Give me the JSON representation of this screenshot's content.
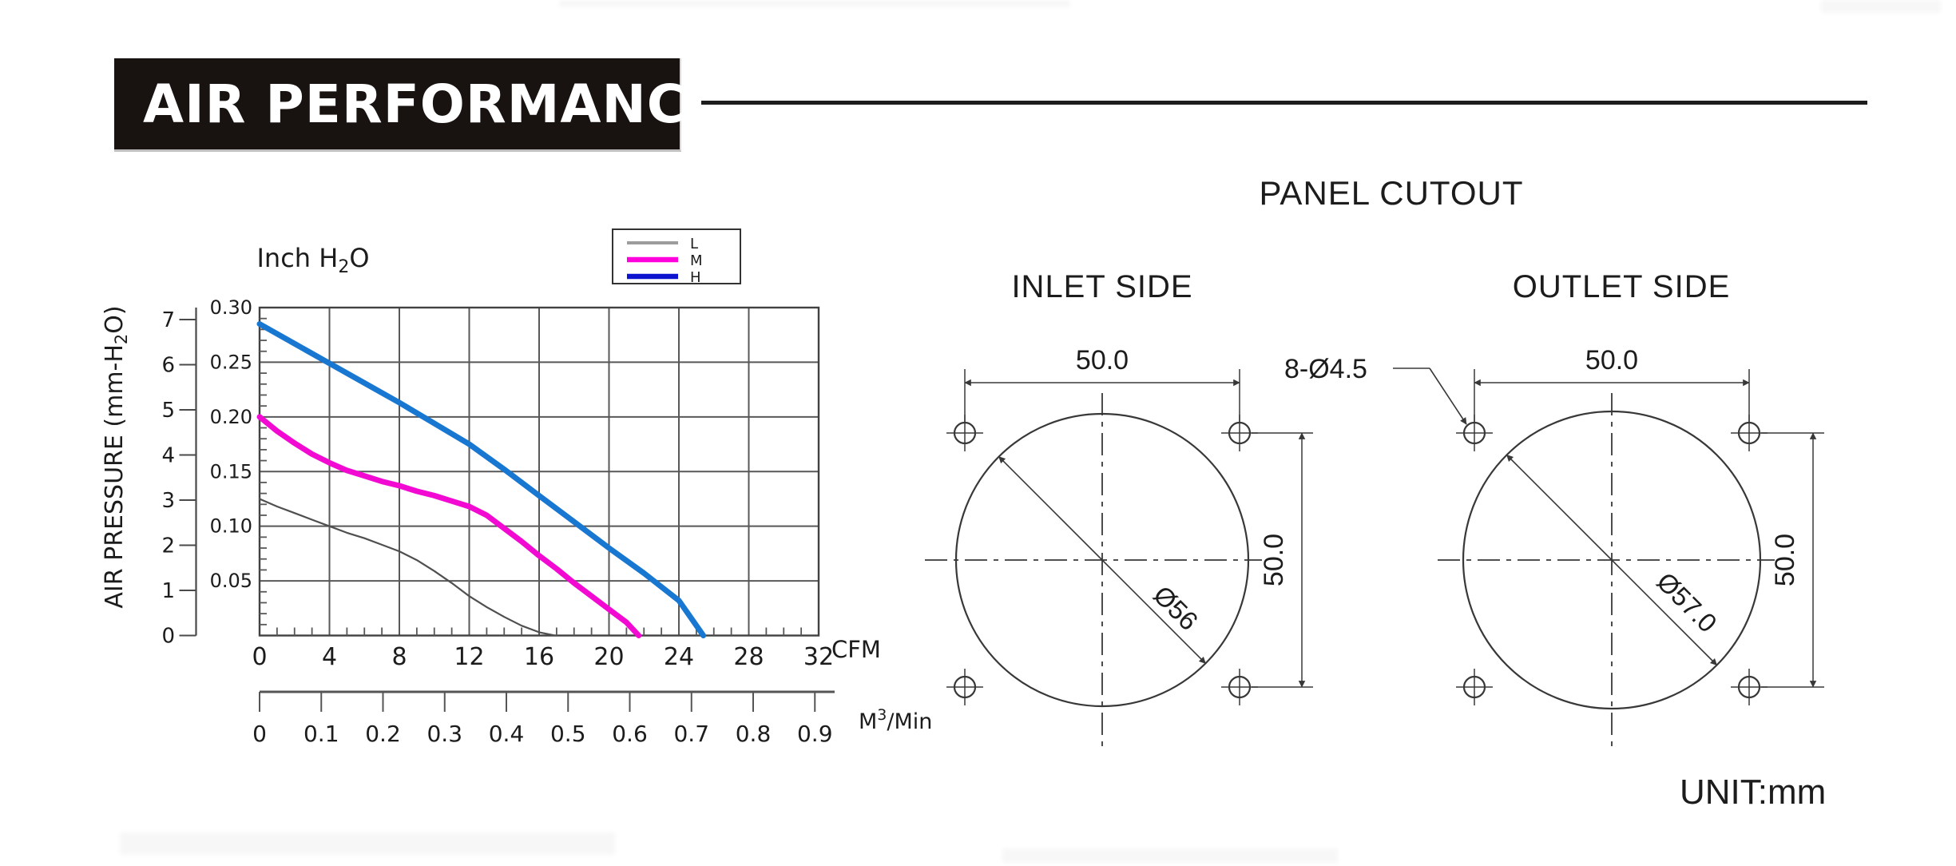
{
  "banner": {
    "title": "AIR PERFORMANCE"
  },
  "chart": {
    "title": {
      "pre": "Inch H",
      "sub": "2",
      "post": "O"
    },
    "y_outer_label": {
      "pre": "AIR PRESSURE    (mm-H",
      "sub": "2",
      "post": "O)"
    },
    "x_unit_label": "CFM",
    "x2_unit_label": {
      "pre": "M",
      "sup": "3",
      "post": "/Min"
    }
  },
  "chart_data": {
    "type": "line",
    "title": "Inch H2O",
    "x_axis": {
      "label": "CFM",
      "min": 0,
      "max": 32,
      "tick_step": 4,
      "minor_tick_step": 1,
      "tick_labels": [
        "0",
        "4",
        "8",
        "12",
        "16",
        "20",
        "24",
        "28",
        "32"
      ]
    },
    "x2_axis": {
      "label": "M3/Min",
      "cfm_per_unit": 35.3147,
      "ticks": [
        0,
        0.1,
        0.2,
        0.3,
        0.4,
        0.5,
        0.6,
        0.7,
        0.8,
        0.9
      ],
      "tick_labels": [
        "0",
        "0.1",
        "0.2",
        "0.3",
        "0.4",
        "0.5",
        "0.6",
        "0.7",
        "0.8",
        "0.9"
      ]
    },
    "y_axis_inner": {
      "label": "Inch H2O",
      "min": 0,
      "max": 0.3,
      "tick_step": 0.05,
      "minor_tick_step": 0.01,
      "tick_labels": [
        "0.30",
        "0.25",
        "0.20",
        "0.15",
        "0.10",
        "0.05"
      ]
    },
    "y_axis_outer": {
      "label": "AIR PRESSURE (mm-H2O)",
      "min": 0,
      "max": 7,
      "tick_step": 1,
      "tick_labels": [
        "0",
        "1",
        "2",
        "3",
        "4",
        "5",
        "6",
        "7"
      ]
    },
    "grid": true,
    "legend_position": "top-right",
    "series": [
      {
        "name": "L",
        "color": "#4f4f4f",
        "width": 2.2,
        "points": [
          [
            0,
            0.125
          ],
          [
            1,
            0.118
          ],
          [
            2,
            0.112
          ],
          [
            3,
            0.106
          ],
          [
            4,
            0.1
          ],
          [
            5,
            0.094
          ],
          [
            6,
            0.089
          ],
          [
            7,
            0.083
          ],
          [
            8,
            0.077
          ],
          [
            9,
            0.069
          ],
          [
            10,
            0.059
          ],
          [
            11,
            0.048
          ],
          [
            12,
            0.036
          ],
          [
            13,
            0.026
          ],
          [
            14,
            0.017
          ],
          [
            15,
            0.009
          ],
          [
            16,
            0.003
          ],
          [
            16.9,
            0
          ]
        ]
      },
      {
        "name": "M",
        "color": "#f30ad2",
        "width": 7,
        "points": [
          [
            0,
            0.2
          ],
          [
            1,
            0.187
          ],
          [
            2,
            0.176
          ],
          [
            3,
            0.166
          ],
          [
            4,
            0.158
          ],
          [
            5,
            0.151
          ],
          [
            6,
            0.146
          ],
          [
            7,
            0.141
          ],
          [
            8,
            0.137
          ],
          [
            9,
            0.132
          ],
          [
            10,
            0.128
          ],
          [
            11,
            0.123
          ],
          [
            12,
            0.118
          ],
          [
            13,
            0.11
          ],
          [
            14,
            0.098
          ],
          [
            15,
            0.086
          ],
          [
            16,
            0.073
          ],
          [
            17,
            0.061
          ],
          [
            18,
            0.048
          ],
          [
            19,
            0.036
          ],
          [
            20,
            0.024
          ],
          [
            21,
            0.012
          ],
          [
            21.7,
            0
          ]
        ]
      },
      {
        "name": "H",
        "color": "#1877d1",
        "width": 7,
        "points": [
          [
            0,
            0.285
          ],
          [
            2,
            0.267
          ],
          [
            4,
            0.249
          ],
          [
            6,
            0.231
          ],
          [
            8,
            0.213
          ],
          [
            10,
            0.194
          ],
          [
            12,
            0.175
          ],
          [
            14,
            0.152
          ],
          [
            16,
            0.128
          ],
          [
            18,
            0.104
          ],
          [
            20,
            0.08
          ],
          [
            22,
            0.057
          ],
          [
            24,
            0.032
          ],
          [
            25.4,
            0
          ]
        ]
      }
    ],
    "legend": [
      {
        "label": "L",
        "color": "#9c9c9c",
        "width": 4
      },
      {
        "label": "M",
        "color": "#ff00dd",
        "width": 6.5
      },
      {
        "label": "H",
        "color": "#0d14cf",
        "width": 6.5
      }
    ]
  },
  "panel_cutout": {
    "title": "PANEL CUTOUT",
    "holes_label": "8-Ø4.5",
    "unit_label": "UNIT:mm",
    "inlet": {
      "title": "INLET SIDE",
      "width_dim": "50.0",
      "height_dim": "50.0",
      "diameter": "Ø56"
    },
    "outlet": {
      "title": "OUTLET SIDE",
      "width_dim": "50.0",
      "height_dim": "50.0",
      "diameter": "Ø57.0"
    }
  },
  "colors": {
    "grid": "#585858",
    "plot_border": "#414141",
    "axis": "#4a4a4a",
    "drawing_stroke": "#383838",
    "banner_bg": "#181210",
    "curve_h": "#1877d1",
    "curve_m": "#f30ad2",
    "curve_l": "#4f4f4f"
  }
}
